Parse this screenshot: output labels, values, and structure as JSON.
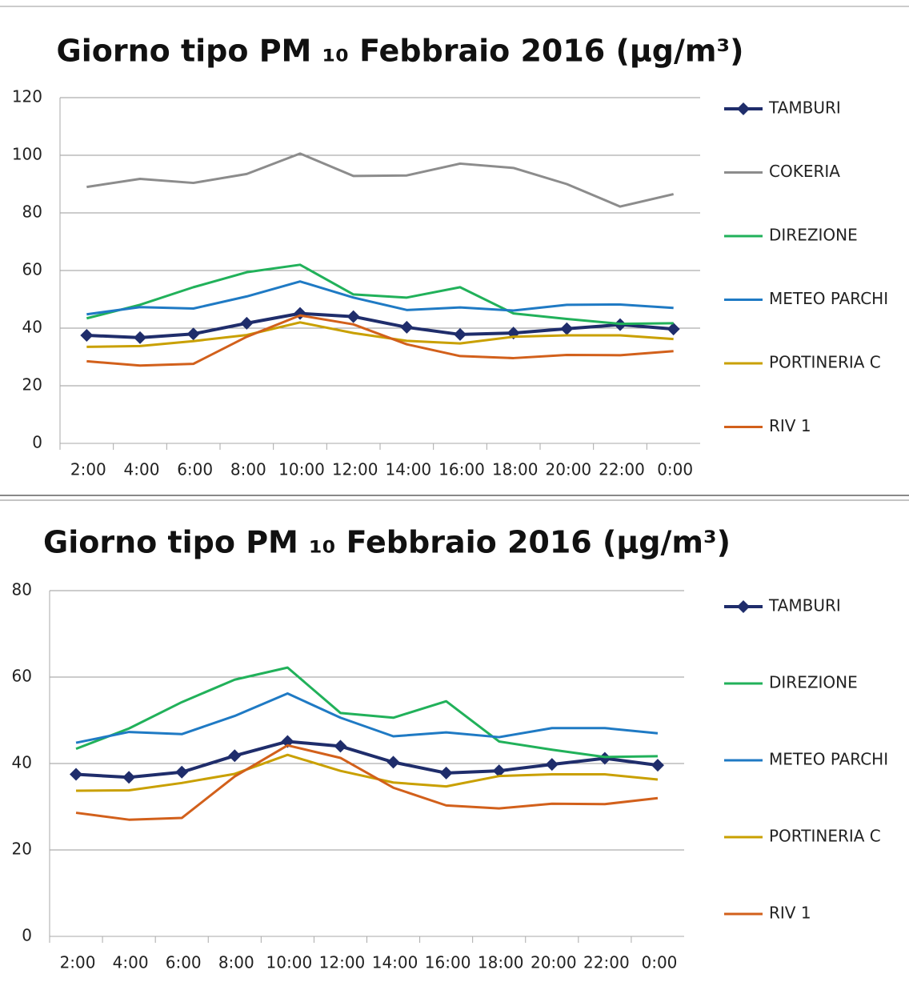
{
  "chart_data": [
    {
      "type": "line",
      "title": "Giorno tipo PM ₁₀ Febbraio 2016 (µg/m³)",
      "categories": [
        "2:00",
        "4:00",
        "6:00",
        "8:00",
        "10:00",
        "12:00",
        "14:00",
        "16:00",
        "18:00",
        "20:00",
        "22:00",
        "0:00"
      ],
      "ylim": [
        0,
        120
      ],
      "yticks": [
        0,
        20,
        40,
        60,
        80,
        100,
        120
      ],
      "grid": true,
      "legend": "right",
      "series": [
        {
          "name": "TAMBURI",
          "color": "#1f2d6b",
          "marker": "diamond",
          "values": [
            37.5,
            36.7,
            38,
            41.7,
            45.1,
            44,
            40.3,
            37.8,
            38.3,
            39.8,
            41.2,
            39.7
          ]
        },
        {
          "name": "COKERIA",
          "color": "#8c8c8c",
          "values": [
            89,
            91.8,
            90.4,
            93.5,
            100.6,
            92.8,
            93,
            97.1,
            95.6,
            90,
            82.2,
            86.5
          ]
        },
        {
          "name": "DIREZIONE",
          "color": "#21b15a",
          "values": [
            43.4,
            48.1,
            54.2,
            59.4,
            62,
            51.7,
            50.6,
            54.2,
            45.1,
            43.2,
            41.5,
            41.7
          ]
        },
        {
          "name": "METEO PARCHI",
          "color": "#1f7ac4",
          "values": [
            44.8,
            47.3,
            46.8,
            51,
            56.2,
            50.6,
            46.3,
            47.2,
            46.1,
            48.1,
            48.2,
            47
          ]
        },
        {
          "name": "PORTINERIA C",
          "color": "#c9a000",
          "values": [
            33.5,
            33.8,
            35.5,
            37.6,
            42,
            38.3,
            35.6,
            34.7,
            37,
            37.5,
            37.5,
            36.2
          ]
        },
        {
          "name": "RIV 1",
          "color": "#d2601b",
          "values": [
            28.5,
            27,
            27.6,
            37,
            44.4,
            41.3,
            34.4,
            30.3,
            29.6,
            30.7,
            30.6,
            32
          ]
        }
      ]
    },
    {
      "type": "line",
      "title": "Giorno tipo PM ₁₀ Febbraio 2016 (µg/m³)",
      "categories": [
        "2:00",
        "4:00",
        "6:00",
        "8:00",
        "10:00",
        "12:00",
        "14:00",
        "16:00",
        "18:00",
        "20:00",
        "22:00",
        "0:00"
      ],
      "ylim": [
        0,
        80
      ],
      "yticks": [
        0,
        20,
        40,
        60,
        80
      ],
      "grid": true,
      "legend": "right",
      "series": [
        {
          "name": "TAMBURI",
          "color": "#1f2d6b",
          "marker": "diamond",
          "values": [
            37.5,
            36.8,
            38,
            41.8,
            45.1,
            44,
            40.3,
            37.8,
            38.3,
            39.8,
            41.2,
            39.6
          ]
        },
        {
          "name": "DIREZIONE",
          "color": "#21b15a",
          "values": [
            43.4,
            48.1,
            54.2,
            59.4,
            62.2,
            51.7,
            50.6,
            54.4,
            45.1,
            43.2,
            41.5,
            41.7
          ]
        },
        {
          "name": "METEO PARCHI",
          "color": "#1f7ac4",
          "values": [
            44.8,
            47.3,
            46.8,
            51,
            56.2,
            50.6,
            46.3,
            47.2,
            46.1,
            48.2,
            48.2,
            47
          ]
        },
        {
          "name": "PORTINERIA C",
          "color": "#c9a000",
          "values": [
            33.7,
            33.8,
            35.5,
            37.6,
            42,
            38.3,
            35.6,
            34.7,
            37.1,
            37.5,
            37.5,
            36.3
          ]
        },
        {
          "name": "RIV 1",
          "color": "#d2601b",
          "values": [
            28.6,
            27,
            27.4,
            37,
            44.2,
            41.3,
            34.4,
            30.3,
            29.6,
            30.7,
            30.6,
            32
          ]
        }
      ]
    }
  ]
}
